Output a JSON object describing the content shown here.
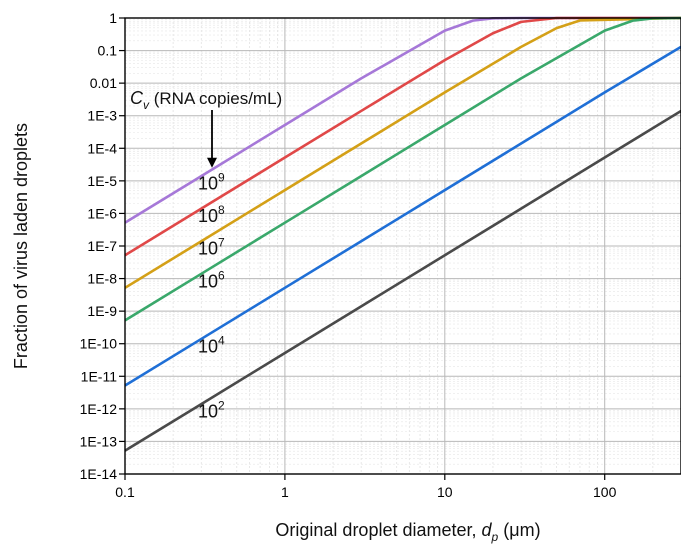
{
  "chart_data": {
    "type": "line",
    "xlabel": "Original droplet diameter, ",
    "xlabel_var": "d",
    "xlabel_sub": "p",
    "xlabel_unit": " (μm)",
    "ylabel": "Fraction of virus laden droplets",
    "x_scale": "log",
    "y_scale": "log",
    "xlim": [
      0.1,
      300
    ],
    "ylim": [
      1e-14,
      1
    ],
    "grid": true,
    "x_ticks": [
      {
        "value": 0.1,
        "label": "0.1"
      },
      {
        "value": 1,
        "label": "1"
      },
      {
        "value": 10,
        "label": "10"
      },
      {
        "value": 100,
        "label": "100"
      }
    ],
    "y_ticks": [
      {
        "value": 1,
        "label": "1"
      },
      {
        "value": 0.1,
        "label": "0.1"
      },
      {
        "value": 0.01,
        "label": "0.01"
      },
      {
        "value": 0.001,
        "label": "1E-3"
      },
      {
        "value": 0.0001,
        "label": "1E-4"
      },
      {
        "value": 1e-05,
        "label": "1E-5"
      },
      {
        "value": 1e-06,
        "label": "1E-6"
      },
      {
        "value": 1e-07,
        "label": "1E-7"
      },
      {
        "value": 1e-08,
        "label": "1E-8"
      },
      {
        "value": 1e-09,
        "label": "1E-9"
      },
      {
        "value": 1e-10,
        "label": "1E-10"
      },
      {
        "value": 1e-11,
        "label": "1E-11"
      },
      {
        "value": 1e-12,
        "label": "1E-12"
      },
      {
        "value": 1e-13,
        "label": "1E-13"
      },
      {
        "value": 1e-14,
        "label": "1E-14"
      }
    ],
    "annotation": {
      "var": "C",
      "sub": "v",
      "text": " (RNA copies/mL)",
      "arrow": true
    },
    "series": [
      {
        "label_base": "10",
        "label_exp": "9",
        "color": "#a678d8",
        "cv": 1000000000.0,
        "x": [
          0.1,
          0.3,
          1,
          3,
          10,
          15,
          20,
          30,
          300
        ],
        "y": [
          5.2e-07,
          1.4e-05,
          0.00052,
          0.014,
          0.41,
          0.83,
          0.98,
          1.0,
          1.0
        ]
      },
      {
        "label_base": "10",
        "label_exp": "8",
        "color": "#e04848",
        "cv": 100000000.0,
        "x": [
          0.1,
          0.3,
          1,
          3,
          10,
          20,
          30,
          50,
          300
        ],
        "y": [
          5.2e-08,
          1.4e-06,
          5.2e-05,
          0.0014,
          0.051,
          0.34,
          0.76,
          0.999,
          1.0
        ]
      },
      {
        "label_base": "10",
        "label_exp": "7",
        "color": "#d4a017",
        "cv": 10000000.0,
        "x": [
          0.1,
          0.3,
          1,
          3,
          10,
          30,
          50,
          70,
          300
        ],
        "y": [
          5.2e-09,
          1.4e-07,
          5.2e-06,
          0.00014,
          0.0052,
          0.13,
          0.49,
          0.84,
          1.0
        ]
      },
      {
        "label_base": "10",
        "label_exp": "6",
        "color": "#3aa86b",
        "cv": 1000000.0,
        "x": [
          0.1,
          0.3,
          1,
          3,
          10,
          30,
          100,
          150,
          200,
          300
        ],
        "y": [
          5.2e-10,
          1.4e-08,
          5.2e-07,
          1.4e-05,
          0.00052,
          0.014,
          0.41,
          0.83,
          0.98,
          1.0
        ]
      },
      {
        "label_base": "10",
        "label_exp": "4",
        "color": "#1f6fd6",
        "cv": 10000.0,
        "x": [
          0.1,
          0.3,
          1,
          3,
          10,
          30,
          100,
          300
        ],
        "y": [
          5.2e-12,
          1.4e-10,
          5.2e-09,
          1.4e-07,
          5.2e-06,
          0.00014,
          0.0052,
          0.13
        ]
      },
      {
        "label_base": "10",
        "label_exp": "2",
        "color": "#4a4a4a",
        "cv": 100.0,
        "x": [
          0.1,
          0.3,
          1,
          3,
          10,
          30,
          100,
          300
        ],
        "y": [
          5.2e-14,
          1.4e-12,
          5.2e-11,
          1.4e-09,
          5.2e-08,
          1.4e-06,
          5.2e-05,
          0.0014
        ]
      }
    ],
    "curve_labels_at_x": [
      0.35,
      0.35,
      0.35,
      0.35,
      0.35,
      0.35
    ]
  }
}
